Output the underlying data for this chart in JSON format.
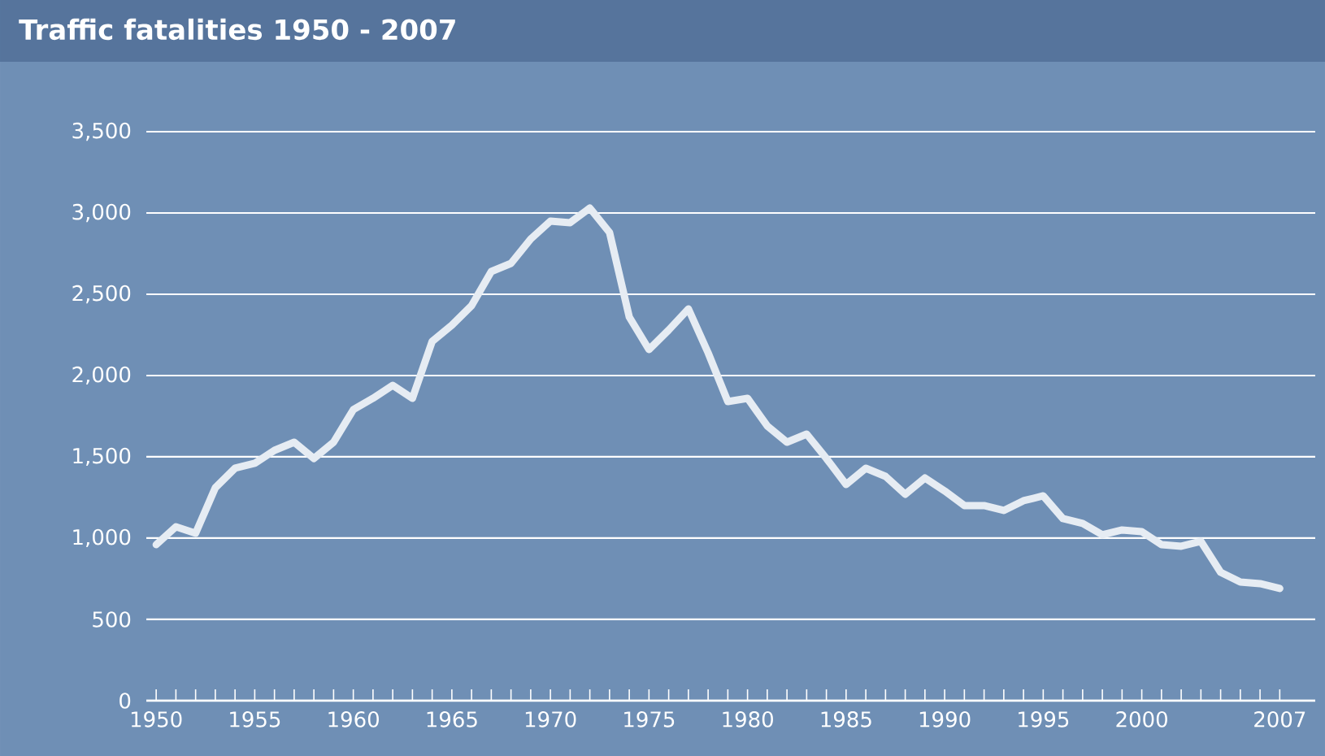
{
  "chart_data": {
    "type": "line",
    "title": "Traffic fatalities 1950 - 2007",
    "x": [
      1950,
      1951,
      1952,
      1953,
      1954,
      1955,
      1956,
      1957,
      1958,
      1959,
      1960,
      1961,
      1962,
      1963,
      1964,
      1965,
      1966,
      1967,
      1968,
      1969,
      1970,
      1971,
      1972,
      1973,
      1974,
      1975,
      1976,
      1977,
      1978,
      1979,
      1980,
      1981,
      1982,
      1983,
      1984,
      1985,
      1986,
      1987,
      1988,
      1989,
      1990,
      1991,
      1992,
      1993,
      1994,
      1995,
      1996,
      1997,
      1998,
      1999,
      2000,
      2001,
      2002,
      2003,
      2004,
      2005,
      2006,
      2007
    ],
    "values": [
      960,
      1070,
      1030,
      1310,
      1430,
      1460,
      1540,
      1590,
      1490,
      1590,
      1790,
      1860,
      1940,
      1860,
      2210,
      2310,
      2430,
      2640,
      2690,
      2840,
      2950,
      2940,
      3030,
      2880,
      2360,
      2160,
      2280,
      2410,
      2140,
      1840,
      1860,
      1690,
      1590,
      1640,
      1490,
      1330,
      1430,
      1380,
      1270,
      1370,
      1290,
      1200,
      1200,
      1170,
      1230,
      1260,
      1120,
      1090,
      1020,
      1050,
      1040,
      960,
      950,
      980,
      790,
      730,
      720,
      690
    ],
    "color": "#e6ecf3",
    "line_style": "solid",
    "marker": "none",
    "grid": "y",
    "xlim": [
      1949.5,
      2008.8
    ],
    "ylim": [
      0,
      3500
    ],
    "xticks": [
      1950,
      {
        "value": 1951,
        "label": null
      },
      {
        "value": 1952,
        "label": null
      },
      {
        "value": 1953,
        "label": null
      },
      {
        "value": 1954,
        "label": null
      },
      1955,
      {
        "value": 1956,
        "label": null
      },
      {
        "value": 1957,
        "label": null
      },
      {
        "value": 1958,
        "label": null
      },
      {
        "value": 1959,
        "label": null
      },
      1960,
      {
        "value": 1961,
        "label": null
      },
      {
        "value": 1962,
        "label": null
      },
      {
        "value": 1963,
        "label": null
      },
      {
        "value": 1964,
        "label": null
      },
      1965,
      {
        "value": 1966,
        "label": null
      },
      {
        "value": 1967,
        "label": null
      },
      {
        "value": 1968,
        "label": null
      },
      {
        "value": 1969,
        "label": null
      },
      1970,
      {
        "value": 1971,
        "label": null
      },
      {
        "value": 1972,
        "label": null
      },
      {
        "value": 1973,
        "label": null
      },
      {
        "value": 1974,
        "label": null
      },
      1975,
      {
        "value": 1976,
        "label": null
      },
      {
        "value": 1977,
        "label": null
      },
      {
        "value": 1978,
        "label": null
      },
      {
        "value": 1979,
        "label": null
      },
      1980,
      {
        "value": 1981,
        "label": null
      },
      {
        "value": 1982,
        "label": null
      },
      {
        "value": 1983,
        "label": null
      },
      {
        "value": 1984,
        "label": null
      },
      1985,
      {
        "value": 1986,
        "label": null
      },
      {
        "value": 1987,
        "label": null
      },
      {
        "value": 1988,
        "label": null
      },
      {
        "value": 1989,
        "label": null
      },
      1990,
      {
        "value": 1991,
        "label": null
      },
      {
        "value": 1992,
        "label": null
      },
      {
        "value": 1993,
        "label": null
      },
      {
        "value": 1994,
        "label": null
      },
      1995,
      {
        "value": 1996,
        "label": null
      },
      {
        "value": 1997,
        "label": null
      },
      {
        "value": 1998,
        "label": null
      },
      {
        "value": 1999,
        "label": null
      },
      2000,
      {
        "value": 2001,
        "label": null
      },
      {
        "value": 2002,
        "label": null
      },
      {
        "value": 2003,
        "label": null
      },
      {
        "value": 2004,
        "label": null
      },
      {
        "value": 2005,
        "label": null
      },
      {
        "value": 2006,
        "label": null
      },
      2007
    ],
    "yticks": [
      0,
      500,
      {
        "value": 1000,
        "label": "1,000"
      },
      {
        "value": 1500,
        "label": "1,500"
      },
      {
        "value": 2000,
        "label": "2,000"
      },
      {
        "value": 2500,
        "label": "2,500"
      },
      {
        "value": 3000,
        "label": "3,000"
      },
      {
        "value": 3500,
        "label": "3,500"
      }
    ]
  }
}
